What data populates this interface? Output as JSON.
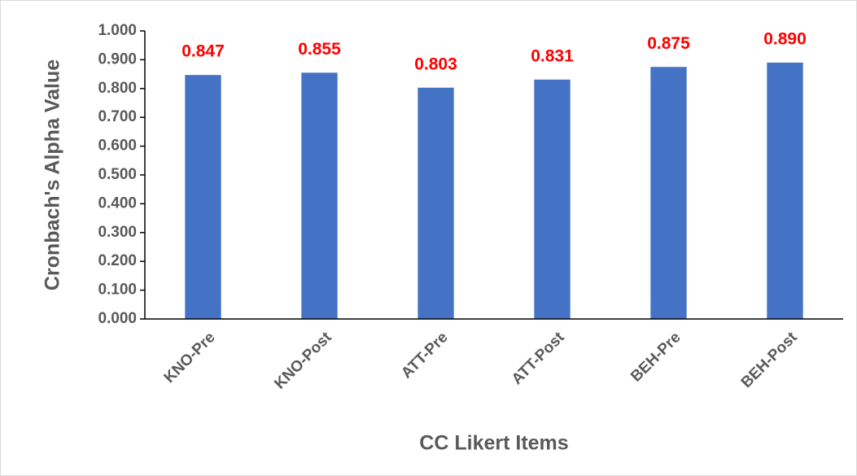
{
  "chart_data": {
    "type": "bar",
    "x_label": "CC Likert Items",
    "y_label": "Cronbach's Alpha Value",
    "categories": [
      "KNO-Pre",
      "KNO-Post",
      "ATT-Pre",
      "ATT-Post",
      "BEH-Pre",
      "BEH-Post"
    ],
    "values": [
      0.847,
      0.855,
      0.803,
      0.831,
      0.875,
      0.89
    ],
    "value_labels": [
      "0.847",
      "0.855",
      "0.803",
      "0.831",
      "0.875",
      "0.890"
    ],
    "color": "#4472c4",
    "ylim": [
      0,
      1
    ],
    "yticks": [
      {
        "value": 0,
        "label": "0.000"
      },
      {
        "value": 0.1,
        "label": "0.100"
      },
      {
        "value": 0.2,
        "label": "0.200"
      },
      {
        "value": 0.3,
        "label": "0.300"
      },
      {
        "value": 0.4,
        "label": "0.400"
      },
      {
        "value": 0.5,
        "label": "0.500"
      },
      {
        "value": 0.6,
        "label": "0.600"
      },
      {
        "value": 0.7,
        "label": "0.700"
      },
      {
        "value": 0.8,
        "label": "0.800"
      },
      {
        "value": 0.9,
        "label": "0.900"
      },
      {
        "value": 1,
        "label": "1.000"
      }
    ],
    "grid": false
  }
}
